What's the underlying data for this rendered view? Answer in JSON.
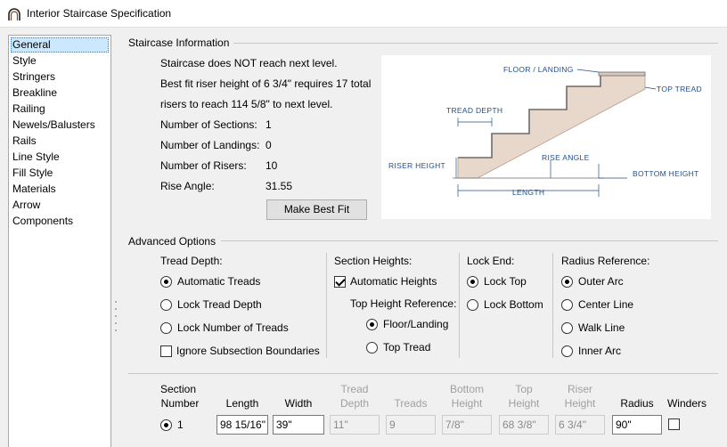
{
  "window": {
    "title": "Interior Staircase Specification"
  },
  "sidebar": {
    "items": [
      {
        "label": "General",
        "selected": true
      },
      {
        "label": "Style"
      },
      {
        "label": "Stringers"
      },
      {
        "label": "Breakline"
      },
      {
        "label": "Railing"
      },
      {
        "label": "Newels/Balusters"
      },
      {
        "label": "Rails"
      },
      {
        "label": "Line Style"
      },
      {
        "label": "Fill Style"
      },
      {
        "label": "Materials"
      },
      {
        "label": "Arrow"
      },
      {
        "label": "Components"
      }
    ]
  },
  "staircase_info": {
    "heading": "Staircase Information",
    "message_line1": "Staircase does NOT reach next level.",
    "message_line2": "Best fit riser height of 6 3/4\" requires 17 total",
    "message_line3": "risers to reach 114 5/8\" to next level.",
    "sections_label": "Number of Sections:",
    "sections_value": "1",
    "landings_label": "Number of Landings:",
    "landings_value": "0",
    "risers_label": "Number of Risers:",
    "risers_value": "10",
    "angle_label": "Rise Angle:",
    "angle_value": "31.55",
    "best_fit_button": "Make Best Fit",
    "diagram": {
      "floor_landing": "FLOOR / LANDING",
      "top_tread": "TOP TREAD",
      "tread_depth": "TREAD DEPTH",
      "rise_angle": "RISE ANGLE",
      "riser_height": "RISER HEIGHT",
      "bottom_height": "BOTTOM HEIGHT",
      "length": "LENGTH"
    }
  },
  "advanced": {
    "heading": "Advanced Options",
    "tread_depth": {
      "label": "Tread Depth:",
      "automatic": "Automatic Treads",
      "lock_depth": "Lock Tread Depth",
      "lock_number": "Lock Number of Treads",
      "ignore_subsection": "Ignore Subsection Boundaries",
      "selected": "automatic",
      "ignore_checked": false
    },
    "section_heights": {
      "label": "Section Heights:",
      "automatic_heights": "Automatic Heights",
      "automatic_checked": true,
      "top_ref_label": "Top Height Reference:",
      "floor_landing": "Floor/Landing",
      "top_tread": "Top Tread",
      "selected": "floor_landing"
    },
    "lock_end": {
      "label": "Lock End:",
      "lock_top": "Lock Top",
      "lock_bottom": "Lock Bottom",
      "selected": "lock_top"
    },
    "radius_reference": {
      "label": "Radius Reference:",
      "outer_arc": "Outer Arc",
      "center_line": "Center Line",
      "walk_line": "Walk Line",
      "inner_arc": "Inner Arc",
      "selected": "outer_arc"
    }
  },
  "section_table": {
    "headers": {
      "section_number_1": "Section",
      "section_number_2": "Number",
      "length": "Length",
      "width": "Width",
      "tread_depth_1": "Tread",
      "tread_depth_2": "Depth",
      "treads": "Treads",
      "bottom_height_1": "Bottom",
      "bottom_height_2": "Height",
      "top_height_1": "Top",
      "top_height_2": "Height",
      "riser_height_1": "Riser",
      "riser_height_2": "Height",
      "radius": "Radius",
      "winders": "Winders"
    },
    "row": {
      "number": "1",
      "length": "98 15/16\"",
      "width": "39\"",
      "tread_depth": "11\"",
      "treads": "9",
      "bottom_height": "7/8\"",
      "top_height": "68 3/8\"",
      "riser_height": "6 3/4\"",
      "radius": "90\"",
      "winders_checked": false
    }
  },
  "colors": {
    "selection": "#cce8ff",
    "diagram_text": "#1f4f8f",
    "stair_fill": "#e8d8cc"
  }
}
